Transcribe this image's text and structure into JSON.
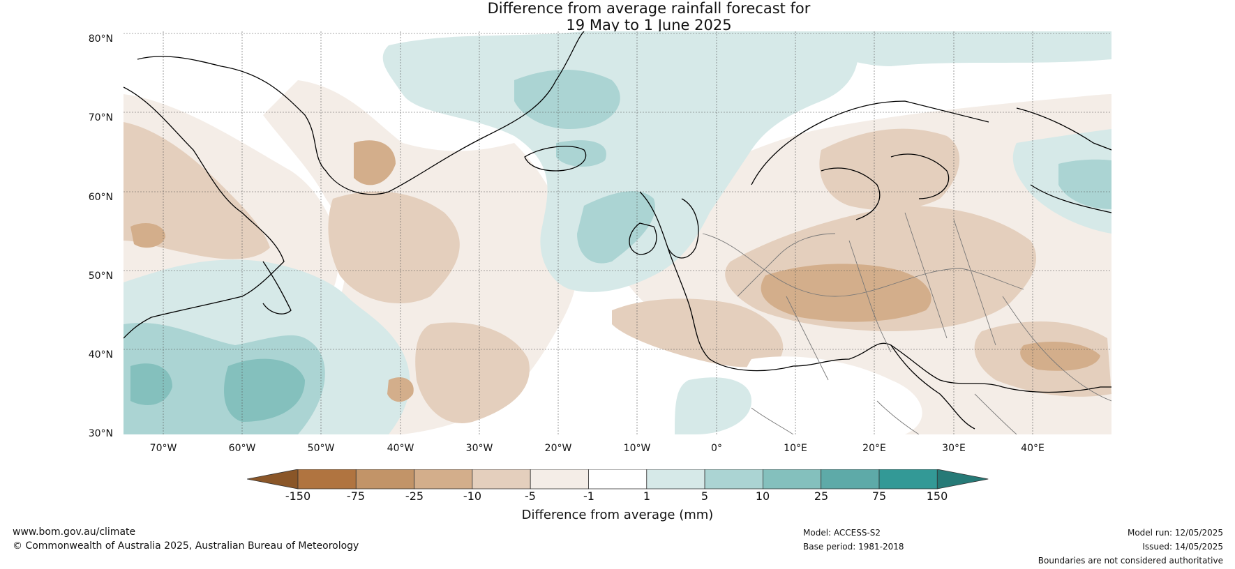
{
  "title": {
    "line1": "Difference from average rainfall forecast for",
    "line2": "19 May to 1 June 2025"
  },
  "map": {
    "projection": "equirectangular",
    "lon_range": [
      -75,
      50
    ],
    "lat_range": [
      30,
      81
    ],
    "lat_labels": [
      "80°N",
      "70°N",
      "60°N",
      "50°N",
      "40°N",
      "30°N"
    ],
    "lat_values": [
      80,
      70,
      60,
      50,
      40,
      30
    ],
    "lon_labels": [
      "70°W",
      "60°W",
      "50°W",
      "40°W",
      "30°W",
      "20°W",
      "10°W",
      "0°",
      "10°E",
      "20°E",
      "30°E",
      "40°E"
    ],
    "lon_values": [
      -70,
      -60,
      -50,
      -40,
      -30,
      -20,
      -10,
      0,
      10,
      20,
      30,
      40
    ],
    "grid": true
  },
  "colorbar": {
    "ticks": [
      "-150",
      "-75",
      "-25",
      "-10",
      "-5",
      "-1",
      "1",
      "5",
      "10",
      "25",
      "75",
      "150"
    ],
    "colors": [
      "#8a5628",
      "#b07440",
      "#c29468",
      "#d3ae8b",
      "#e4cfbd",
      "#f4ede7",
      "#ffffff",
      "#d6e9e8",
      "#abd4d3",
      "#84c0bd",
      "#5eaaa8",
      "#339996",
      "#267a77"
    ],
    "label": "Difference from average (mm)"
  },
  "footer": {
    "website": "www.bom.gov.au/climate",
    "copyright": "© Commonwealth of Australia 2025, Australian Bureau of Meteorology",
    "model": "Model: ACCESS-S2",
    "base_period": "Base period: 1981-2018",
    "model_run": "Model run: 12/05/2025",
    "issued": "Issued: 14/05/2025",
    "disclaimer": "Boundaries are not considered authoritative"
  }
}
